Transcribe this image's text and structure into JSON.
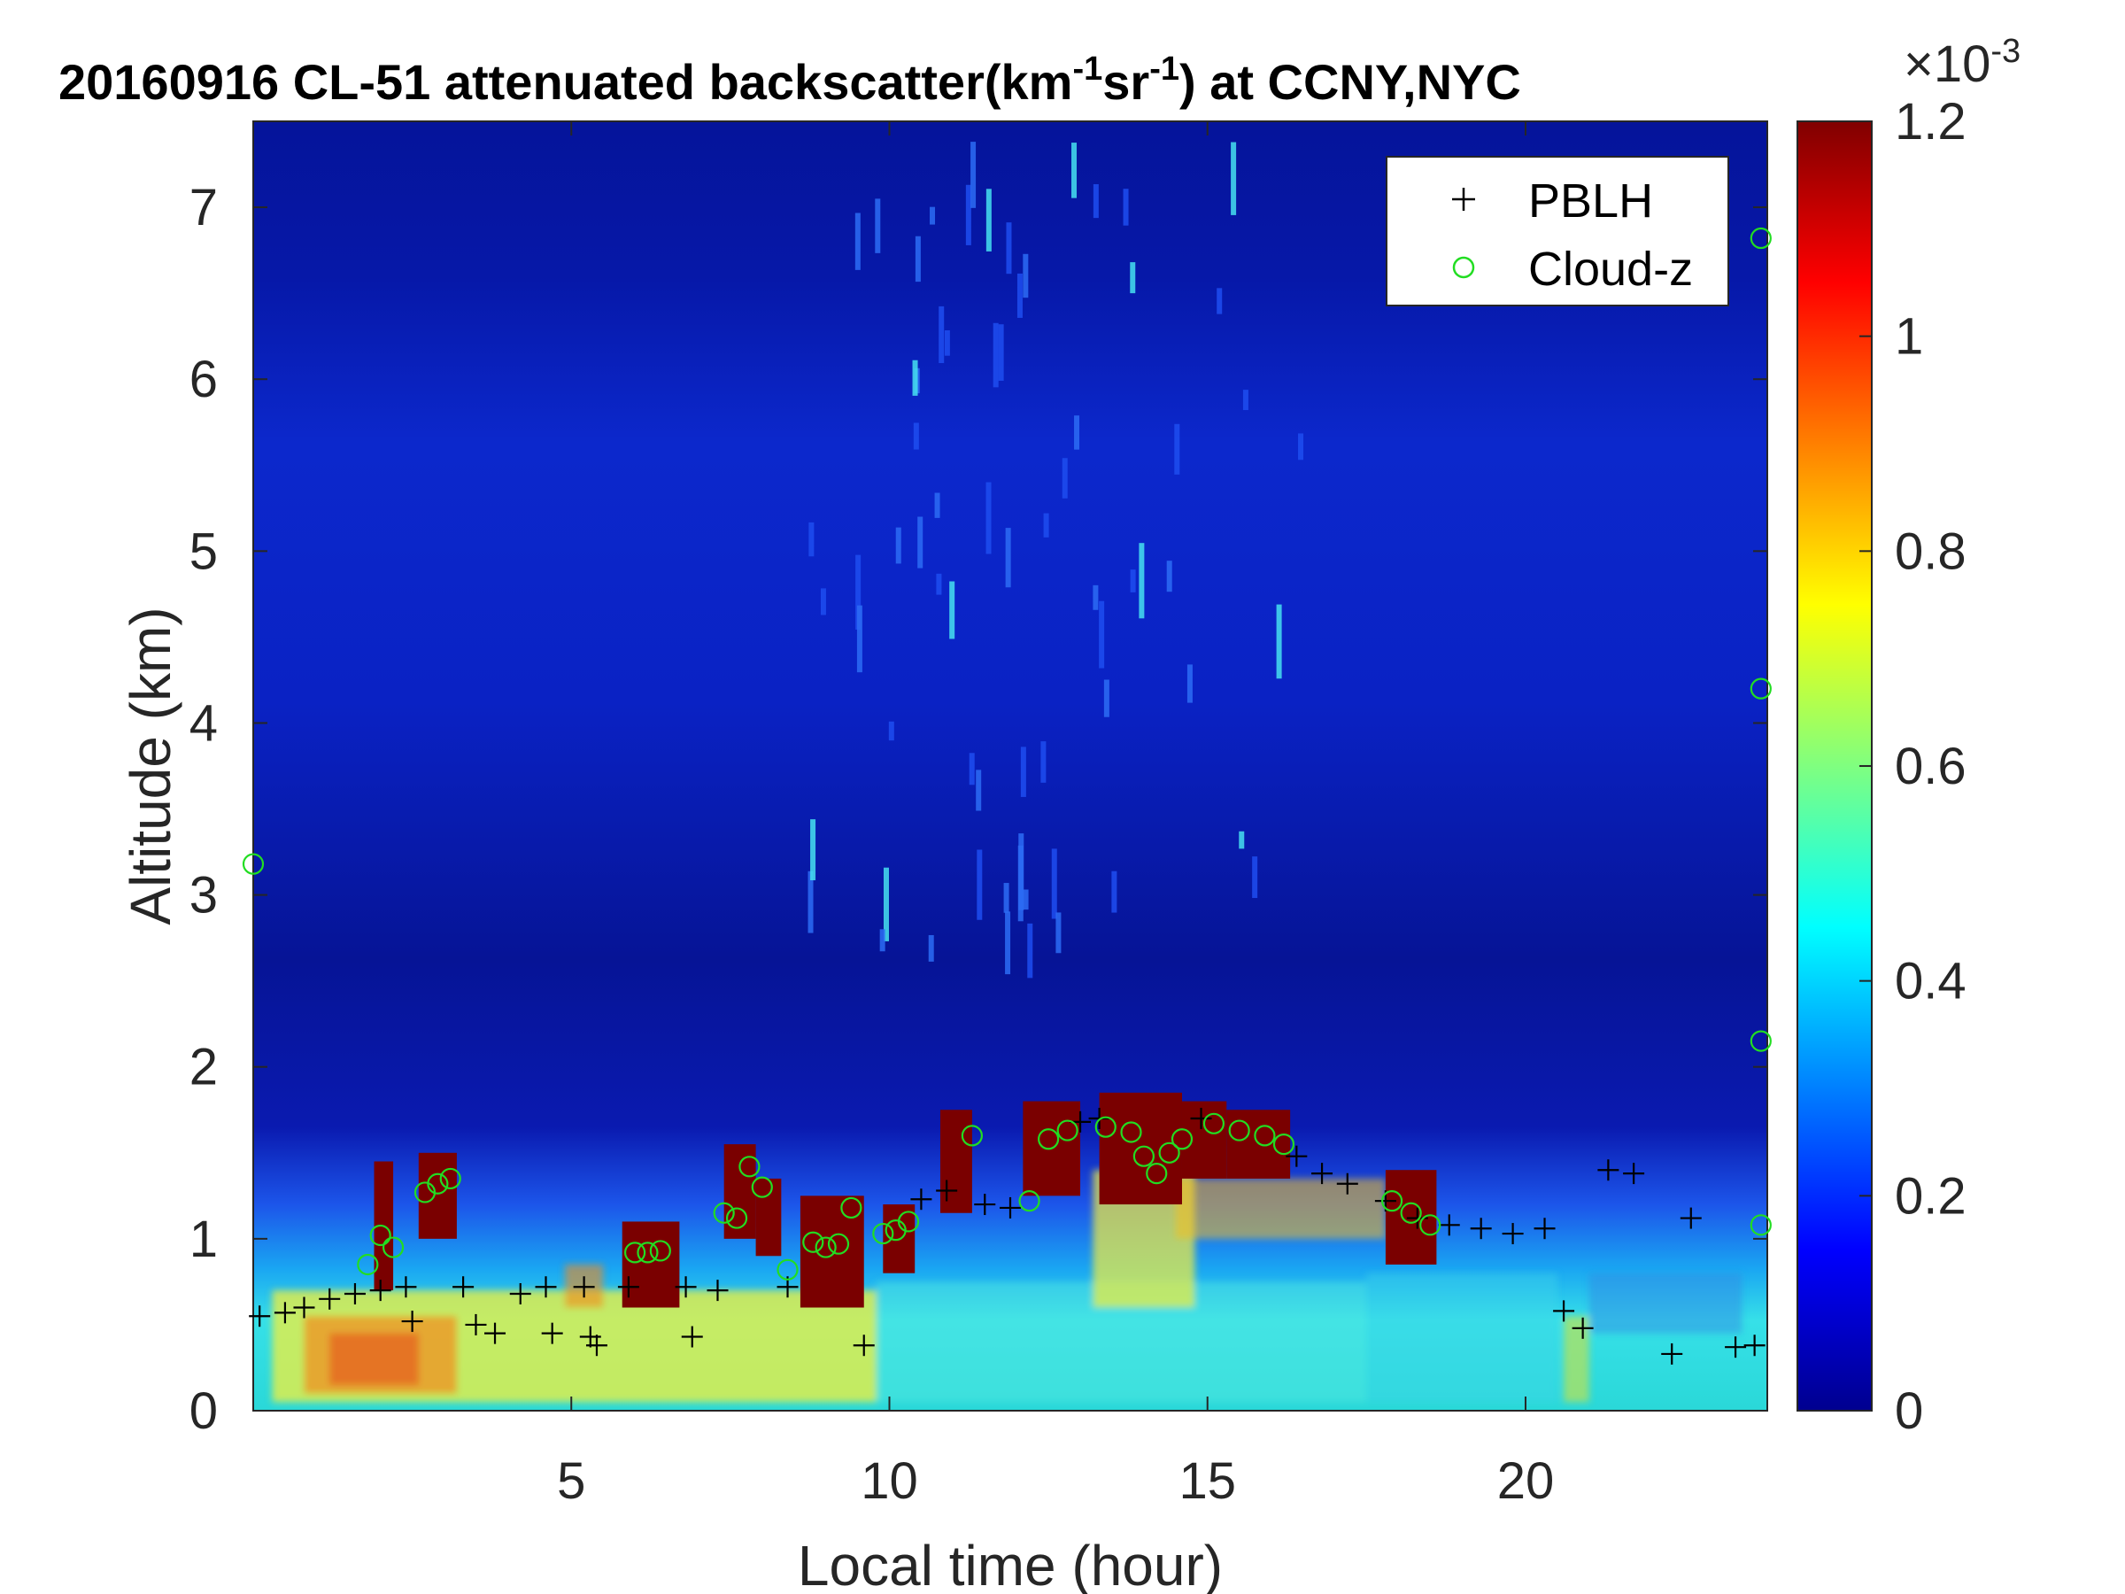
{
  "chart_data": {
    "type": "heatmap",
    "title_main": "20160916  CL-51 attenuated backscatter(km",
    "title_sup1": "-1",
    "title_mid": "sr",
    "title_sup2": "-1",
    "title_end": ") at CCNY,NYC",
    "xlabel": "Local time (hour)",
    "ylabel": "Altitude (km)",
    "xlim": [
      0,
      23.8
    ],
    "ylim": [
      0,
      7.5
    ],
    "xticks": [
      5,
      10,
      15,
      20
    ],
    "yticks": [
      0,
      1,
      2,
      3,
      4,
      5,
      6,
      7
    ],
    "colorbar": {
      "range": [
        0,
        0.0012
      ],
      "ticks": [
        0,
        0.2,
        0.4,
        0.6,
        0.8,
        1,
        1.2
      ],
      "exponent_label": "×10",
      "exponent_power": "-3",
      "colormap": "jet"
    },
    "legend": {
      "placement": "top-right",
      "entries": [
        {
          "label": "PBLH",
          "marker": "plus",
          "color": "#000000"
        },
        {
          "label": "Cloud-z",
          "marker": "circle",
          "color": "#22dd22"
        }
      ]
    },
    "pblh": [
      {
        "x": 0.1,
        "y": 0.55
      },
      {
        "x": 0.5,
        "y": 0.57
      },
      {
        "x": 0.8,
        "y": 0.6
      },
      {
        "x": 1.2,
        "y": 0.65
      },
      {
        "x": 1.6,
        "y": 0.68
      },
      {
        "x": 2.0,
        "y": 0.7
      },
      {
        "x": 2.4,
        "y": 0.72
      },
      {
        "x": 2.5,
        "y": 0.52
      },
      {
        "x": 3.3,
        "y": 0.72
      },
      {
        "x": 3.5,
        "y": 0.5
      },
      {
        "x": 3.8,
        "y": 0.45
      },
      {
        "x": 4.2,
        "y": 0.68
      },
      {
        "x": 4.6,
        "y": 0.72
      },
      {
        "x": 4.7,
        "y": 0.45
      },
      {
        "x": 5.2,
        "y": 0.72
      },
      {
        "x": 5.3,
        "y": 0.43
      },
      {
        "x": 5.4,
        "y": 0.38
      },
      {
        "x": 5.9,
        "y": 0.72
      },
      {
        "x": 6.8,
        "y": 0.72
      },
      {
        "x": 6.9,
        "y": 0.43
      },
      {
        "x": 7.3,
        "y": 0.7
      },
      {
        "x": 8.4,
        "y": 0.72
      },
      {
        "x": 9.6,
        "y": 0.38
      },
      {
        "x": 10.5,
        "y": 1.23
      },
      {
        "x": 10.9,
        "y": 1.28
      },
      {
        "x": 11.5,
        "y": 1.2
      },
      {
        "x": 11.9,
        "y": 1.18
      },
      {
        "x": 13.0,
        "y": 1.68
      },
      {
        "x": 13.3,
        "y": 1.7
      },
      {
        "x": 14.9,
        "y": 1.7
      },
      {
        "x": 16.4,
        "y": 1.48
      },
      {
        "x": 16.8,
        "y": 1.38
      },
      {
        "x": 17.2,
        "y": 1.32
      },
      {
        "x": 17.8,
        "y": 1.22
      },
      {
        "x": 18.3,
        "y": 1.12
      },
      {
        "x": 18.8,
        "y": 1.08
      },
      {
        "x": 19.3,
        "y": 1.06
      },
      {
        "x": 19.8,
        "y": 1.03
      },
      {
        "x": 20.3,
        "y": 1.06
      },
      {
        "x": 20.6,
        "y": 0.58
      },
      {
        "x": 20.9,
        "y": 0.48
      },
      {
        "x": 21.3,
        "y": 1.4
      },
      {
        "x": 21.7,
        "y": 1.38
      },
      {
        "x": 22.3,
        "y": 0.33
      },
      {
        "x": 22.6,
        "y": 1.12
      },
      {
        "x": 23.3,
        "y": 0.37
      },
      {
        "x": 23.6,
        "y": 0.38
      }
    ],
    "cloud_z": [
      {
        "x": 1.8,
        "y": 0.85
      },
      {
        "x": 2.0,
        "y": 1.02
      },
      {
        "x": 2.2,
        "y": 0.95
      },
      {
        "x": 2.7,
        "y": 1.27
      },
      {
        "x": 2.9,
        "y": 1.32
      },
      {
        "x": 3.1,
        "y": 1.35
      },
      {
        "x": 6.0,
        "y": 0.92
      },
      {
        "x": 6.2,
        "y": 0.92
      },
      {
        "x": 6.4,
        "y": 0.93
      },
      {
        "x": 7.4,
        "y": 1.15
      },
      {
        "x": 7.6,
        "y": 1.12
      },
      {
        "x": 7.8,
        "y": 1.42
      },
      {
        "x": 8.0,
        "y": 1.3
      },
      {
        "x": 8.4,
        "y": 0.82
      },
      {
        "x": 8.8,
        "y": 0.98
      },
      {
        "x": 9.0,
        "y": 0.95
      },
      {
        "x": 9.2,
        "y": 0.97
      },
      {
        "x": 9.4,
        "y": 1.18
      },
      {
        "x": 9.9,
        "y": 1.03
      },
      {
        "x": 10.1,
        "y": 1.05
      },
      {
        "x": 10.3,
        "y": 1.1
      },
      {
        "x": 11.3,
        "y": 1.6
      },
      {
        "x": 12.2,
        "y": 1.22
      },
      {
        "x": 12.5,
        "y": 1.58
      },
      {
        "x": 12.8,
        "y": 1.63
      },
      {
        "x": 13.4,
        "y": 1.65
      },
      {
        "x": 13.8,
        "y": 1.62
      },
      {
        "x": 14.0,
        "y": 1.48
      },
      {
        "x": 14.2,
        "y": 1.38
      },
      {
        "x": 14.4,
        "y": 1.5
      },
      {
        "x": 14.6,
        "y": 1.58
      },
      {
        "x": 15.1,
        "y": 1.67
      },
      {
        "x": 15.5,
        "y": 1.63
      },
      {
        "x": 15.9,
        "y": 1.6
      },
      {
        "x": 16.2,
        "y": 1.55
      },
      {
        "x": 17.9,
        "y": 1.22
      },
      {
        "x": 18.2,
        "y": 1.15
      },
      {
        "x": 18.5,
        "y": 1.08
      },
      {
        "x": 23.7,
        "y": 6.82
      },
      {
        "x": 23.7,
        "y": 4.2
      },
      {
        "x": 23.7,
        "y": 2.15
      },
      {
        "x": 23.7,
        "y": 1.08
      },
      {
        "x": 0.0,
        "y": 3.18
      }
    ]
  }
}
